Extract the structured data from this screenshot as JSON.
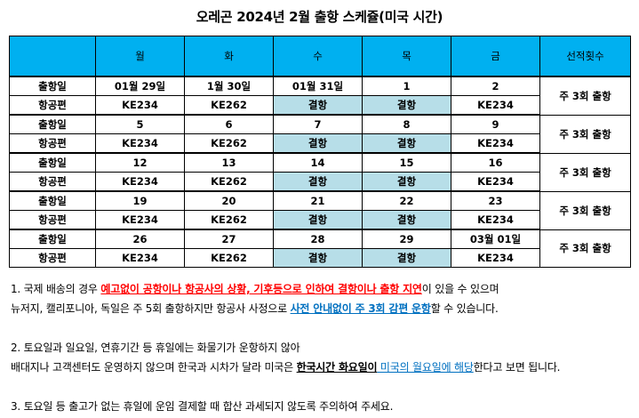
{
  "title": "오레곤 2024년 2월 출항 스케쥴(미국 시간)",
  "table": {
    "headers": [
      "",
      "월",
      "화",
      "수",
      "목",
      "금",
      "선적횟수"
    ],
    "label_date": "출항일",
    "label_flight": "항공편",
    "weeks": [
      {
        "dates": [
          "01월 29일",
          "1월 30일",
          "01월 31일",
          "1",
          "2"
        ],
        "flights": [
          "KE234",
          "KE262",
          "결항",
          "결항",
          "KE234"
        ],
        "freq": "주 3회 출항"
      },
      {
        "dates": [
          "5",
          "6",
          "7",
          "8",
          "9"
        ],
        "flights": [
          "KE234",
          "KE262",
          "결항",
          "결항",
          "KE234"
        ],
        "freq": "주 3회 출항"
      },
      {
        "dates": [
          "12",
          "13",
          "14",
          "15",
          "16"
        ],
        "flights": [
          "KE234",
          "KE262",
          "결항",
          "결항",
          "KE234"
        ],
        "freq": "주 3회 출항"
      },
      {
        "dates": [
          "19",
          "20",
          "21",
          "22",
          "23"
        ],
        "flights": [
          "KE234",
          "KE262",
          "결항",
          "결항",
          "KE234"
        ],
        "freq": "주 3회 출항"
      },
      {
        "dates": [
          "26",
          "27",
          "28",
          "29",
          "03월 01일"
        ],
        "flights": [
          "KE234",
          "KE262",
          "결항",
          "결항",
          "KE234"
        ],
        "freq": "주 3회 출항"
      }
    ]
  },
  "notes": {
    "n1_a": "1. 국제 배송의 경우 ",
    "n1_b": "예고없이 공항이나 항공사의 상황, 기후등으로 인하여 결항이나 출항 지연",
    "n1_c": "이 있을 수 있으며",
    "n1_line2_a": "뉴저지, 캘리포니아, 독일은 주 5회 출항하지만 항공사 사정으로 ",
    "n1_line2_b": "사전 안내없이 주 3회 감편 운항",
    "n1_line2_c": "할 수 있습니다.",
    "n2_line1": "2. 토요일과 일요일, 연휴기간 등 휴일에는 화물기가 운항하지 않아",
    "n2_line2_a": "배대지나 고객센터도 운영하지 않으며 한국과 시차가 달라 미국은 ",
    "n2_line2_b": "한국시간 화요일이",
    "n2_line2_c": " 미국의 월요일에 해당",
    "n2_line2_d": "한다고 보면 됩니다.",
    "n3": "3. 토요일 등 출고가 없는 휴일에 운임 결제할 때 합산 과세되지 않도록 주의하여 주세요."
  },
  "colors": {
    "header_bg": "#00b0f0",
    "cancel_bg": "#b7dee8",
    "warn": "#ff0000",
    "accent": "#0070c0"
  }
}
